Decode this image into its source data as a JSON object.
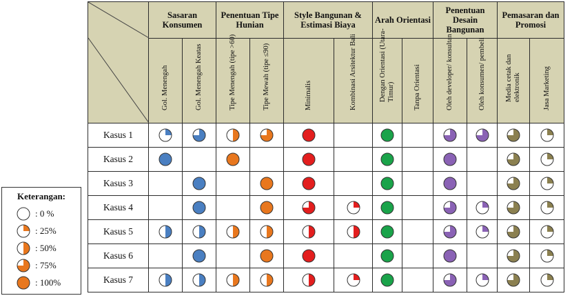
{
  "groups": [
    {
      "label": "Sasaran Konsumen",
      "span": 2
    },
    {
      "label": "Penentuan Tipe Hunian",
      "span": 2
    },
    {
      "label": "Style Bangunan & Estimasi Biaya",
      "span": 2
    },
    {
      "label": "Arah Orientasi",
      "span": 2
    },
    {
      "label": "Penentuan Desain Bangunan",
      "span": 2
    },
    {
      "label": "Pemasaran dan Promosi",
      "span": 2
    }
  ],
  "subheaders": [
    "Gol. Menengah",
    "Gol. Menengah Keatas",
    "Tipe Menengah (tipe >60)",
    "Tipe Mewah (tipe ≤90)",
    "Minimalis",
    "Kombinasi Arsitektur Bali",
    "Dengan Orientasi (Utara-Timur)",
    "Tanpa Orientasi",
    "Oleh developer/ konsultan",
    "Oleh konsumen/ pembeli",
    "Media cetak dan elektronik",
    "Jasa Marketing"
  ],
  "colors": [
    "#4a7fc1",
    "#4a7fc1",
    "#e8771e",
    "#e8771e",
    "#e31e1e",
    "#e31e1e",
    "#1aa34a",
    "#1aa34a",
    "#8a62b5",
    "#8a62b5",
    "#8b8050",
    "#8b8050"
  ],
  "rows": [
    {
      "label": "Kasus 1",
      "values": [
        25,
        75,
        50,
        75,
        100,
        null,
        100,
        null,
        75,
        75,
        75,
        25
      ]
    },
    {
      "label": "Kasus 2",
      "values": [
        100,
        null,
        100,
        null,
        100,
        null,
        100,
        null,
        100,
        null,
        75,
        25
      ]
    },
    {
      "label": "Kasus 3",
      "values": [
        null,
        100,
        null,
        100,
        100,
        null,
        100,
        null,
        100,
        null,
        75,
        25
      ]
    },
    {
      "label": "Kasus 4",
      "values": [
        null,
        100,
        null,
        100,
        75,
        25,
        100,
        null,
        75,
        25,
        75,
        25
      ]
    },
    {
      "label": "Kasus 5",
      "values": [
        50,
        50,
        50,
        50,
        50,
        50,
        100,
        null,
        75,
        25,
        75,
        25
      ]
    },
    {
      "label": "Kasus 6",
      "values": [
        null,
        100,
        null,
        100,
        100,
        null,
        100,
        null,
        100,
        null,
        75,
        25
      ]
    },
    {
      "label": "Kasus 7",
      "values": [
        50,
        50,
        50,
        50,
        50,
        25,
        100,
        null,
        75,
        25,
        75,
        25
      ]
    }
  ],
  "legend": {
    "title": "Keterangan:",
    "color": "#e8771e",
    "items": [
      {
        "value": 0,
        "label": ": 0 %"
      },
      {
        "value": 25,
        "label": ": 25%"
      },
      {
        "value": 50,
        "label": ": 50%"
      },
      {
        "value": 75,
        "label": ": 75%"
      },
      {
        "value": 100,
        "label": ": 100%"
      }
    ]
  }
}
